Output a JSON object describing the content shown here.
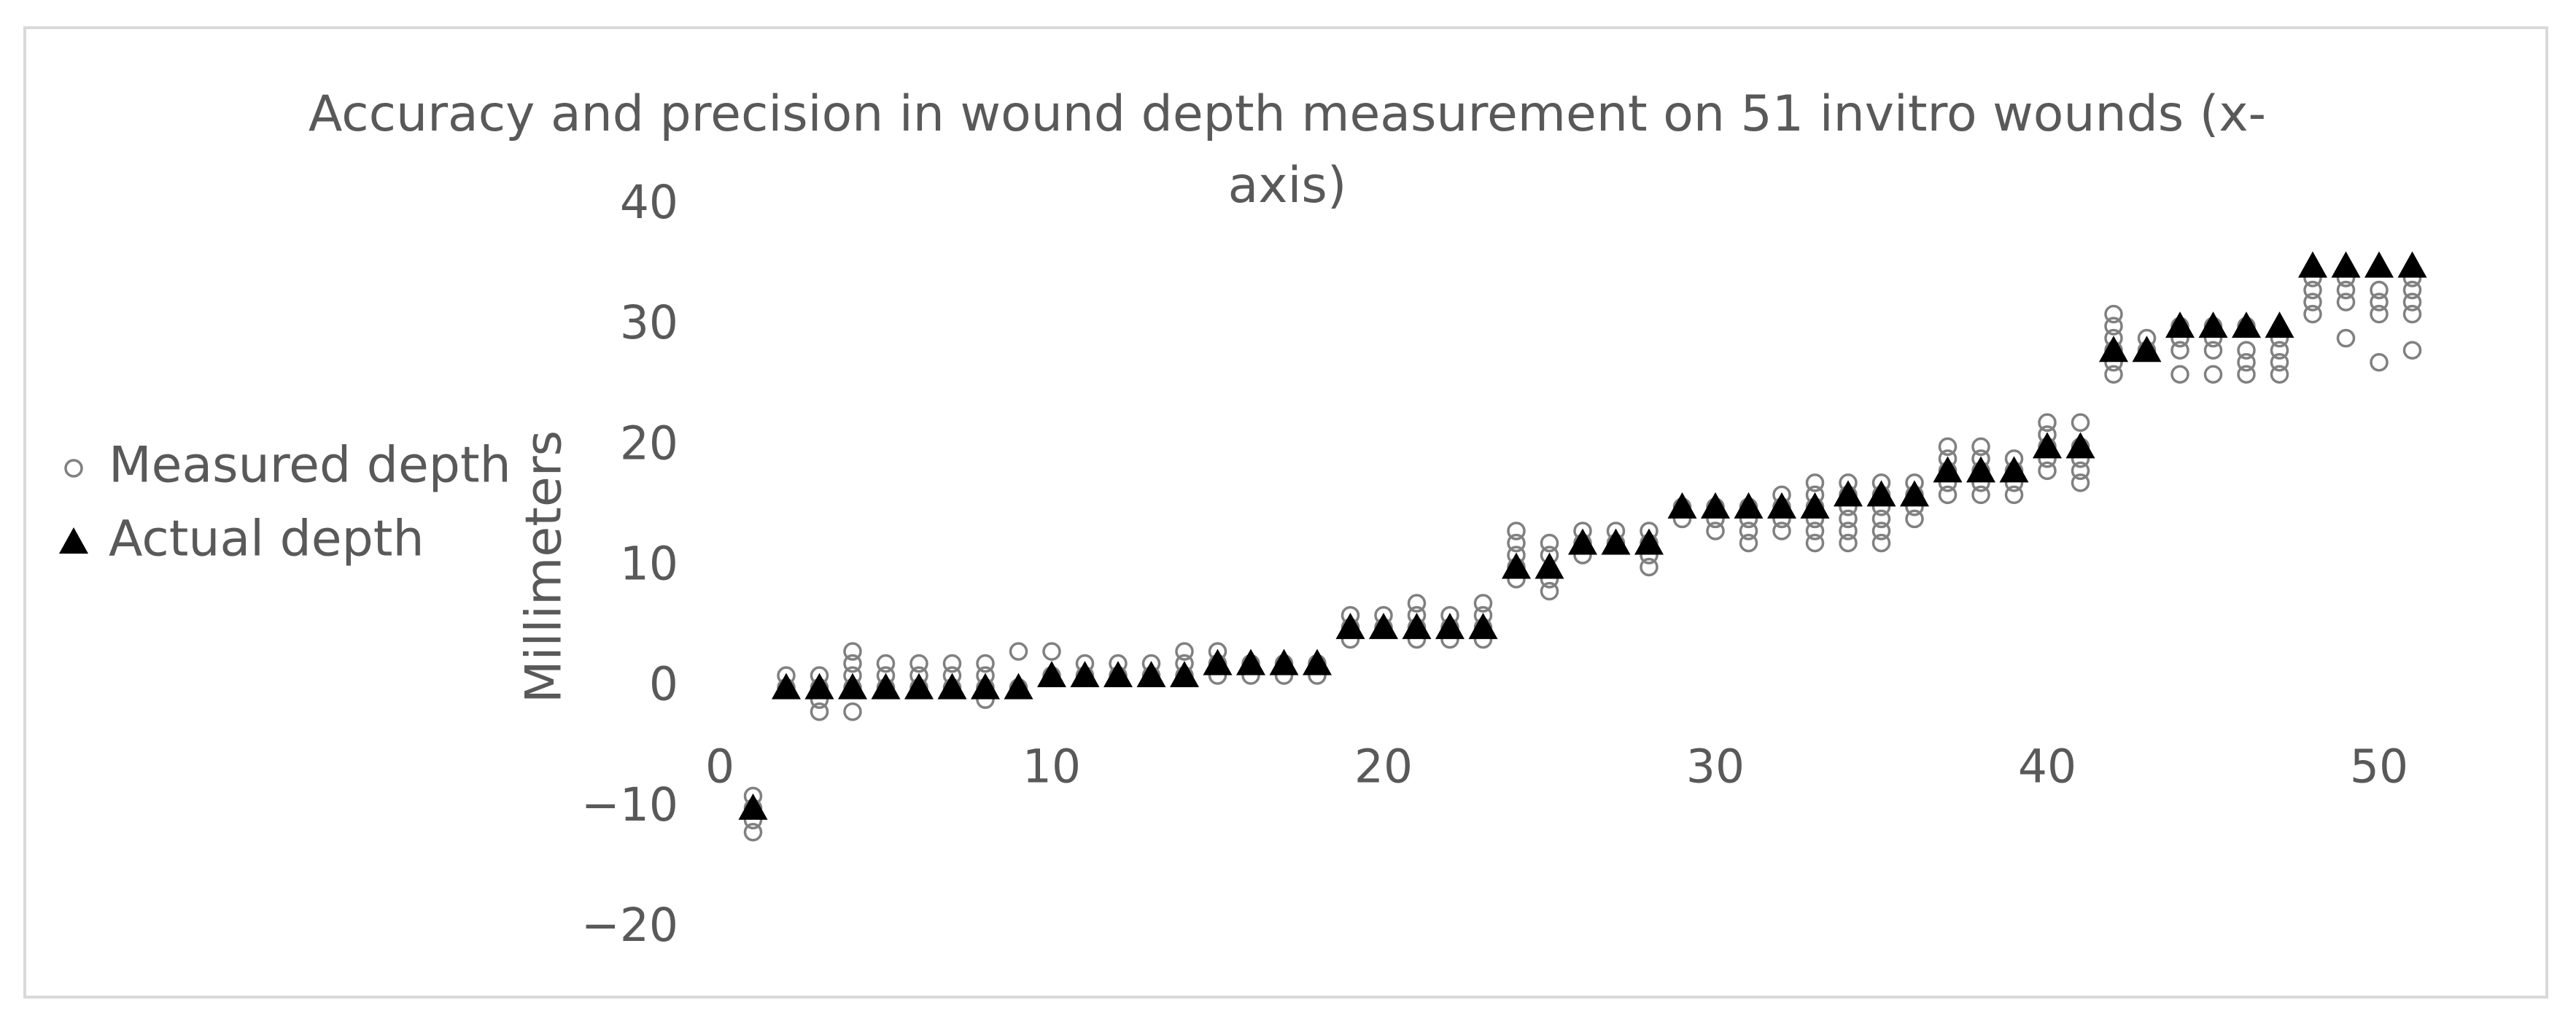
{
  "chart_data": {
    "type": "scatter",
    "title": "Accuracy and precision in wound depth measurement on 51 invitro wounds (x-axis)",
    "y_label": "Millimeters",
    "xlim": [
      0,
      52
    ],
    "xticks": [
      0,
      10,
      20,
      30,
      40,
      50
    ],
    "ylim": [
      -20,
      40
    ],
    "yticks": [
      {
        "value": -20,
        "label": "−20"
      },
      {
        "value": -10,
        "label": "−10"
      },
      0,
      10,
      20,
      30,
      40
    ],
    "grid": false,
    "legend": "left",
    "series": [
      {
        "name": "Measured depth",
        "color": "#808080",
        "marker": "circle",
        "x": [
          1,
          1,
          1,
          1,
          2,
          2,
          3,
          3,
          3,
          3,
          4,
          4,
          4,
          4,
          4,
          5,
          5,
          5,
          6,
          6,
          6,
          7,
          7,
          7,
          8,
          8,
          8,
          8,
          9,
          9,
          10,
          10,
          11,
          11,
          12,
          12,
          13,
          13,
          14,
          14,
          14,
          15,
          15,
          15,
          16,
          16,
          17,
          17,
          18,
          18,
          19,
          19,
          19,
          20,
          20,
          21,
          21,
          21,
          21,
          22,
          22,
          22,
          23,
          23,
          23,
          23,
          24,
          24,
          24,
          24,
          24,
          25,
          25,
          25,
          25,
          26,
          26,
          26,
          27,
          27,
          28,
          28,
          28,
          28,
          29,
          29,
          30,
          30,
          30,
          31,
          31,
          31,
          31,
          32,
          32,
          32,
          32,
          33,
          33,
          33,
          33,
          33,
          33,
          34,
          34,
          34,
          34,
          34,
          34,
          35,
          35,
          35,
          35,
          35,
          35,
          36,
          36,
          36,
          36,
          37,
          37,
          37,
          37,
          37,
          38,
          38,
          38,
          38,
          38,
          39,
          39,
          39,
          39,
          40,
          40,
          40,
          40,
          40,
          41,
          41,
          41,
          41,
          41,
          42,
          42,
          42,
          42,
          42,
          42,
          43,
          43,
          44,
          44,
          44,
          44,
          45,
          45,
          45,
          45,
          46,
          46,
          46,
          46,
          47,
          47,
          47,
          47,
          48,
          48,
          48,
          48,
          49,
          49,
          49,
          49,
          50,
          50,
          50,
          50,
          51,
          51,
          51,
          51,
          51
        ],
        "values": [
          -9,
          -10,
          -11,
          -12,
          1,
          0,
          1,
          0,
          -1,
          -2,
          3,
          2,
          1,
          0,
          -2,
          2,
          1,
          0,
          2,
          1,
          0,
          2,
          1,
          0,
          2,
          1,
          0,
          -1,
          3,
          0,
          3,
          1,
          2,
          1,
          2,
          1,
          2,
          1,
          3,
          2,
          1,
          3,
          2,
          1,
          2,
          1,
          2,
          1,
          2,
          1,
          6,
          5,
          4,
          6,
          5,
          7,
          6,
          5,
          4,
          6,
          5,
          4,
          7,
          6,
          5,
          4,
          13,
          12,
          11,
          10,
          9,
          12,
          11,
          9,
          8,
          13,
          12,
          11,
          13,
          12,
          13,
          12,
          11,
          10,
          15,
          14,
          15,
          14,
          13,
          15,
          14,
          13,
          12,
          16,
          15,
          14,
          13,
          17,
          16,
          15,
          14,
          13,
          12,
          17,
          16,
          15,
          14,
          13,
          12,
          17,
          16,
          15,
          14,
          13,
          12,
          17,
          16,
          15,
          14,
          20,
          19,
          18,
          17,
          16,
          20,
          19,
          18,
          17,
          16,
          19,
          18,
          17,
          16,
          22,
          21,
          20,
          19,
          18,
          22,
          20,
          19,
          18,
          17,
          31,
          30,
          29,
          28,
          27,
          26,
          29,
          28,
          30,
          29,
          28,
          26,
          30,
          29,
          28,
          26,
          30,
          28,
          27,
          26,
          29,
          28,
          27,
          26,
          34,
          33,
          32,
          31,
          34,
          33,
          32,
          29,
          33,
          32,
          31,
          27,
          34,
          33,
          32,
          31,
          28
        ]
      },
      {
        "name": "Actual depth",
        "color": "#000000",
        "marker": "triangle",
        "x": [
          1,
          2,
          3,
          4,
          5,
          6,
          7,
          8,
          9,
          10,
          11,
          12,
          13,
          14,
          15,
          16,
          17,
          18,
          19,
          20,
          21,
          22,
          23,
          24,
          25,
          26,
          27,
          28,
          29,
          30,
          31,
          32,
          33,
          34,
          35,
          36,
          37,
          38,
          39,
          40,
          41,
          42,
          43,
          44,
          45,
          46,
          47,
          48,
          49,
          50,
          51
        ],
        "values": [
          -10,
          0,
          0,
          0,
          0,
          0,
          0,
          0,
          0,
          1,
          1,
          1,
          1,
          1,
          2,
          2,
          2,
          2,
          5,
          5,
          5,
          5,
          5,
          10,
          10,
          12,
          12,
          12,
          15,
          15,
          15,
          15,
          15,
          16,
          16,
          16,
          18,
          18,
          18,
          20,
          20,
          28,
          28,
          30,
          30,
          30,
          30,
          35,
          35,
          35,
          35
        ]
      }
    ]
  }
}
